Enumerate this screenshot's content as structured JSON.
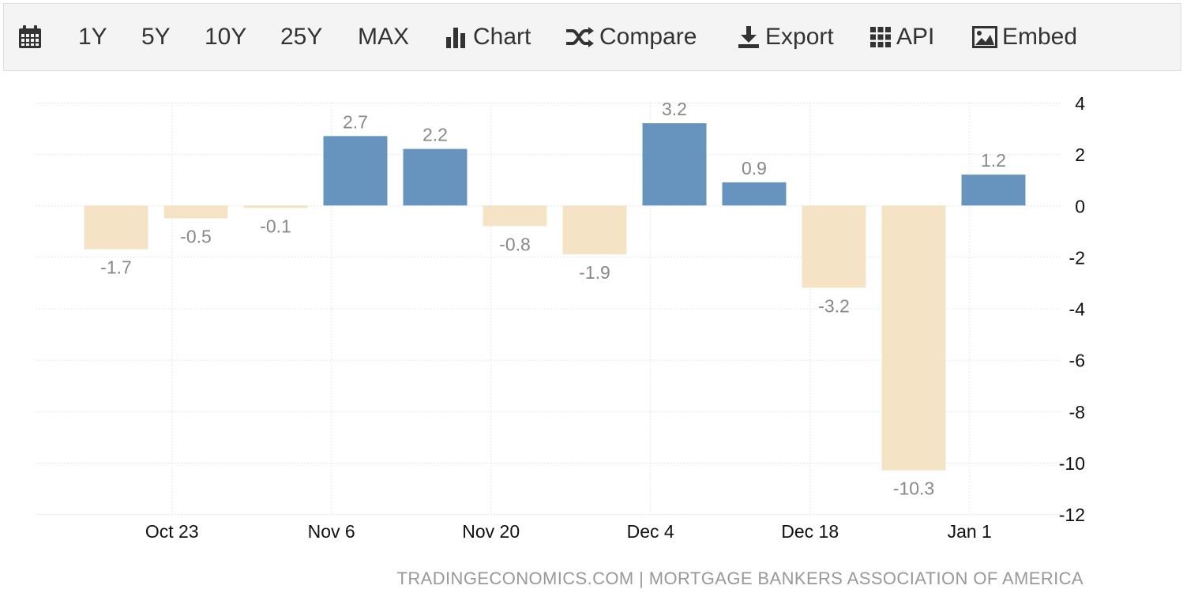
{
  "toolbar": {
    "calendar_icon": "calendar-icon",
    "ranges": [
      "1Y",
      "5Y",
      "10Y",
      "25Y",
      "MAX"
    ],
    "chart_label": "Chart",
    "compare_label": "Compare",
    "export_label": "Export",
    "api_label": "API",
    "embed_label": "Embed"
  },
  "colors": {
    "positive": "#6794bf",
    "negative": "#f4e4c5",
    "label": "#888888",
    "grid": "#e6e6e6"
  },
  "chart_data": {
    "type": "bar",
    "title": "",
    "xlabel": "",
    "ylabel": "",
    "ylim": [
      -12,
      4
    ],
    "yticks": [
      4,
      2,
      0,
      -2,
      -4,
      -6,
      -8,
      -10,
      -12
    ],
    "x_tick_labels": [
      "Oct 23",
      "Nov 6",
      "Nov 20",
      "Dec 4",
      "Dec 18",
      "Jan 1"
    ],
    "x_tick_bar_positions": [
      0.7,
      2.7,
      4.7,
      6.7,
      8.7,
      10.7
    ],
    "values": [
      -1.7,
      -0.5,
      -0.1,
      2.7,
      2.2,
      -0.8,
      -1.9,
      3.2,
      0.9,
      -3.2,
      -10.3,
      1.2
    ],
    "data_labels": [
      "-1.7",
      "-0.5",
      "-0.1",
      "2.7",
      "2.2",
      "-0.8",
      "-1.9",
      "3.2",
      "0.9",
      "-3.2",
      "-10.3",
      "1.2"
    ],
    "source": "TRADINGECONOMICS.COM | MORTGAGE BANKERS ASSOCIATION OF AMERICA"
  }
}
